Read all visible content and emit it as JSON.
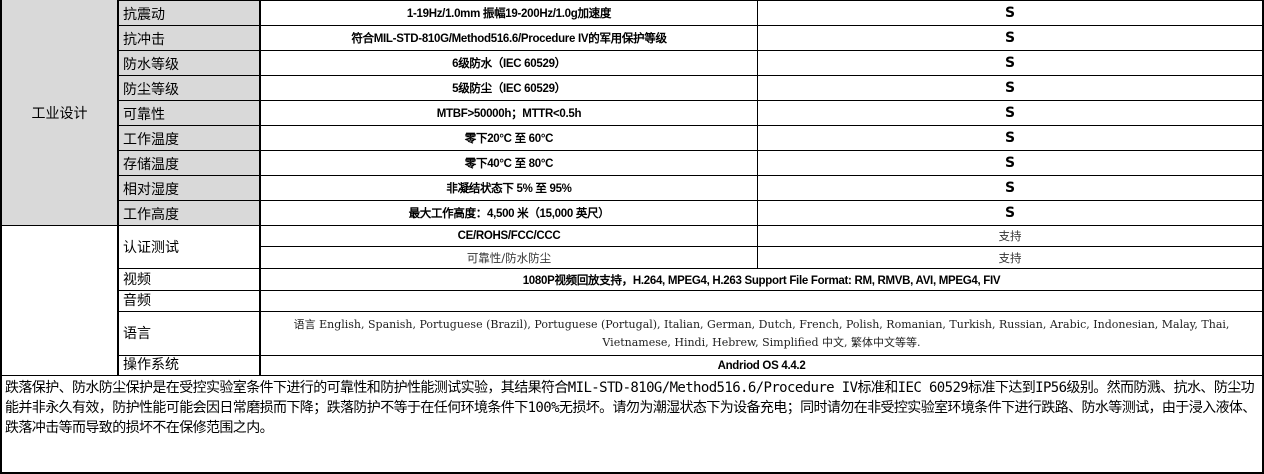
{
  "group_label": "工业设计",
  "industrial_rows": [
    {
      "label": "抗震动",
      "value": "1-19Hz/1.0mm 振幅19-200Hz/1.0g加速度",
      "support": "S"
    },
    {
      "label": "抗冲击",
      "value": "符合MIL-STD-810G/Method516.6/Procedure IV的军用保护等级",
      "support": "S"
    },
    {
      "label": "防水等级",
      "value": "6级防水（IEC 60529）",
      "support": "S"
    },
    {
      "label": "防尘等级",
      "value": "5级防尘（IEC 60529）",
      "support": "S"
    },
    {
      "label": "可靠性",
      "value": "MTBF>50000h；MTTR<0.5h",
      "support": "S"
    },
    {
      "label": "工作温度",
      "value": "零下20°C 至 60°C",
      "support": "S"
    },
    {
      "label": "存储温度",
      "value": "零下40°C 至 80°C",
      "support": "S"
    },
    {
      "label": "相对湿度",
      "value": "非凝结状态下 5% 至 95%",
      "support": "S"
    },
    {
      "label": "工作高度",
      "value": "最大工作高度：4,500 米（15,000 英尺）",
      "support": "S"
    }
  ],
  "certification": {
    "label": "认证测试",
    "rows": [
      {
        "item": "CE/ROHS/FCC/CCC",
        "support": "支持"
      },
      {
        "item": "可靠性/防水防尘",
        "support": "支持"
      }
    ]
  },
  "video": {
    "label": "视频",
    "value": "1080P视频回放支持，H.264, MPEG4, H.263 Support File Format: RM, RMVB, AVI, MPEG4, FIV"
  },
  "audio": {
    "label": "音频",
    "value": ""
  },
  "language": {
    "label": "语言",
    "value": "语言 English, Spanish, Portuguese (Brazil), Portuguese (Portugal), Italian, German, Dutch, French, Polish, Romanian, Turkish, Russian, Arabic, Indonesian, Malay, Thai, Vietnamese, Hindi, Hebrew, Simplified 中文, 繁体中文等等."
  },
  "os": {
    "label": "操作系统",
    "value": "Andriod OS 4.4.2"
  },
  "note": "跌落保护、防水防尘保护是在受控实验室条件下进行的可靠性和防护性能测试实验，其结果符合MIL-STD-810G/Method516.6/Procedure IV标准和IEC 60529标准下达到IP56级别。然而防溅、抗水、防尘功能并非永久有效，防护性能可能会因日常磨损而下降；跌落防护不等于在任何环境条件下100%无损坏。请勿为潮湿状态下为设备充电；同时请勿在非受控实验室环境条件下进行跌路、防水等测试，由于浸入液体、跌落冲击等而导致的损坏不在保修范围之内。"
}
